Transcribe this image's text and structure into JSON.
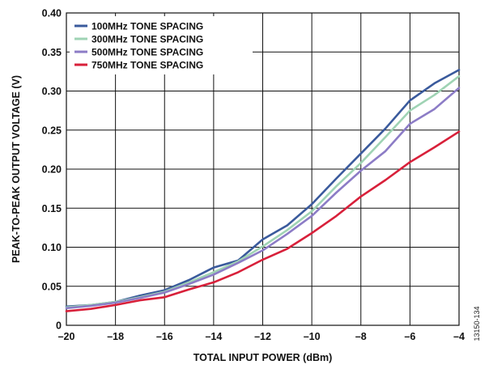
{
  "chart_data": {
    "type": "line",
    "xlabel": "TOTAL INPUT POWER (dBm)",
    "ylabel": "PEAK-TO-PEAK OUTPUT VOLTAGE (V)",
    "xlim": [
      -20,
      -4
    ],
    "ylim": [
      0,
      0.4
    ],
    "xticks": [
      -20,
      -18,
      -16,
      -14,
      -12,
      -10,
      -8,
      -6,
      -4
    ],
    "xtick_labels": [
      "–20",
      "–18",
      "–16",
      "–14",
      "–12",
      "–10",
      "–8",
      "–6",
      "–4"
    ],
    "yticks": [
      0,
      0.05,
      0.1,
      0.15,
      0.2,
      0.25,
      0.3,
      0.35,
      0.4
    ],
    "ytick_labels": [
      "0",
      "0.05",
      "0.10",
      "0.15",
      "0.20",
      "0.25",
      "0.30",
      "0.35",
      "0.40"
    ],
    "grid": true,
    "legend_position": "top-left",
    "figure_id": "13150-134",
    "x": [
      -20,
      -19,
      -18,
      -17,
      -16,
      -15,
      -14,
      -13,
      -12,
      -11,
      -10,
      -9,
      -8,
      -7,
      -6,
      -5,
      -4
    ],
    "series": [
      {
        "name": "100MHz TONE SPACING",
        "color": "#3a5a9c",
        "values": [
          0.024,
          0.026,
          0.03,
          0.038,
          0.045,
          0.058,
          0.074,
          0.083,
          0.11,
          0.128,
          0.155,
          0.188,
          0.22,
          0.252,
          0.288,
          0.31,
          0.327
        ]
      },
      {
        "name": "300MHz TONE SPACING",
        "color": "#9fd3b4",
        "values": [
          0.023,
          0.026,
          0.03,
          0.036,
          0.043,
          0.055,
          0.068,
          0.082,
          0.101,
          0.122,
          0.146,
          0.178,
          0.208,
          0.241,
          0.275,
          0.295,
          0.319
        ]
      },
      {
        "name": "500MHz TONE SPACING",
        "color": "#8c7cc6",
        "values": [
          0.022,
          0.025,
          0.029,
          0.035,
          0.042,
          0.053,
          0.065,
          0.08,
          0.096,
          0.117,
          0.14,
          0.17,
          0.198,
          0.223,
          0.258,
          0.277,
          0.304
        ]
      },
      {
        "name": "750MHz TONE SPACING",
        "color": "#d8203a",
        "values": [
          0.018,
          0.021,
          0.026,
          0.032,
          0.036,
          0.046,
          0.055,
          0.068,
          0.084,
          0.098,
          0.118,
          0.14,
          0.165,
          0.186,
          0.209,
          0.228,
          0.248
        ]
      }
    ]
  }
}
